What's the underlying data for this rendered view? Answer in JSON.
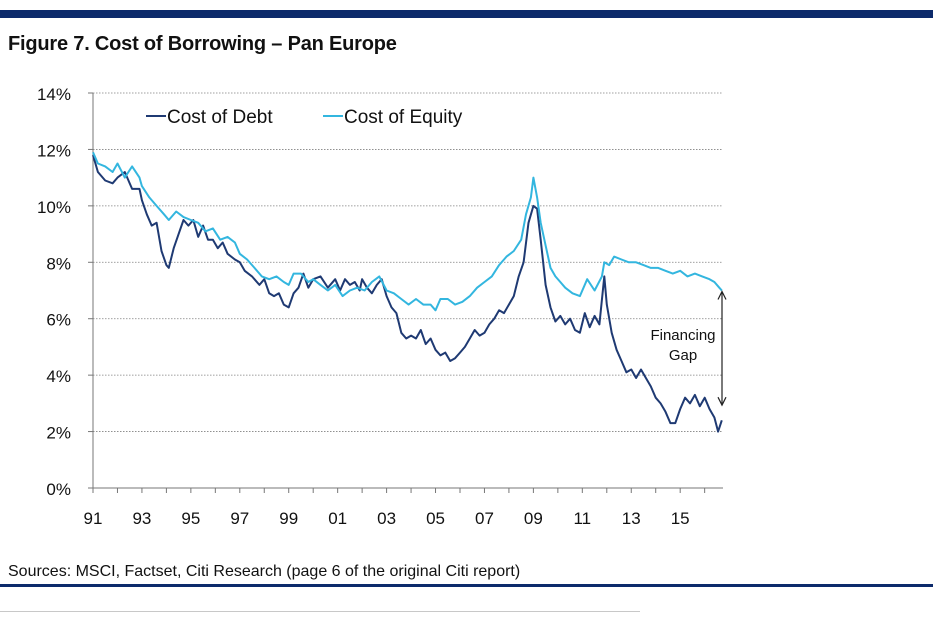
{
  "figure": {
    "title": "Figure 7. Cost of Borrowing – Pan Europe",
    "source": "Sources: MSCI, Factset, Citi Research (page 6 of the original Citi report)"
  },
  "colors": {
    "accent_rule": "#0c2a6b",
    "debt": "#1f3a73",
    "equity": "#33b6df",
    "grid": "#808080"
  },
  "chart_data": {
    "type": "line",
    "title": "Figure 7. Cost of Borrowing – Pan Europe",
    "xlabel": "",
    "ylabel": "",
    "xlim": [
      1991,
      2016.75
    ],
    "ylim": [
      0,
      14
    ],
    "grid": true,
    "legend_position": "top-left",
    "x_ticks": [
      "91",
      "93",
      "95",
      "97",
      "99",
      "01",
      "03",
      "05",
      "07",
      "09",
      "11",
      "13",
      "15"
    ],
    "y_ticks": [
      "0%",
      "2%",
      "4%",
      "6%",
      "8%",
      "10%",
      "12%",
      "14%"
    ],
    "annotation": {
      "text_line1": "Financing",
      "text_line2": "Gap"
    },
    "series": [
      {
        "name": "Cost of Debt",
        "color": "#1f3a73",
        "points": [
          [
            1991.0,
            11.8
          ],
          [
            1991.2,
            11.2
          ],
          [
            1991.5,
            10.9
          ],
          [
            1991.8,
            10.8
          ],
          [
            1992.0,
            11.0
          ],
          [
            1992.3,
            11.2
          ],
          [
            1992.6,
            10.6
          ],
          [
            1992.9,
            10.6
          ],
          [
            1993.0,
            10.2
          ],
          [
            1993.2,
            9.7
          ],
          [
            1993.4,
            9.3
          ],
          [
            1993.6,
            9.4
          ],
          [
            1993.8,
            8.4
          ],
          [
            1994.0,
            7.9
          ],
          [
            1994.1,
            7.8
          ],
          [
            1994.3,
            8.5
          ],
          [
            1994.5,
            9.0
          ],
          [
            1994.7,
            9.5
          ],
          [
            1994.9,
            9.3
          ],
          [
            1995.1,
            9.5
          ],
          [
            1995.3,
            8.9
          ],
          [
            1995.5,
            9.3
          ],
          [
            1995.7,
            8.8
          ],
          [
            1995.9,
            8.8
          ],
          [
            1996.1,
            8.5
          ],
          [
            1996.3,
            8.7
          ],
          [
            1996.5,
            8.3
          ],
          [
            1996.8,
            8.1
          ],
          [
            1997.0,
            8.0
          ],
          [
            1997.2,
            7.7
          ],
          [
            1997.5,
            7.5
          ],
          [
            1997.8,
            7.2
          ],
          [
            1998.0,
            7.4
          ],
          [
            1998.2,
            6.9
          ],
          [
            1998.4,
            6.8
          ],
          [
            1998.6,
            6.9
          ],
          [
            1998.8,
            6.5
          ],
          [
            1999.0,
            6.4
          ],
          [
            1999.2,
            6.9
          ],
          [
            1999.4,
            7.1
          ],
          [
            1999.6,
            7.6
          ],
          [
            1999.8,
            7.1
          ],
          [
            2000.0,
            7.4
          ],
          [
            2000.3,
            7.5
          ],
          [
            2000.6,
            7.1
          ],
          [
            2000.9,
            7.4
          ],
          [
            2001.1,
            7.0
          ],
          [
            2001.3,
            7.4
          ],
          [
            2001.5,
            7.2
          ],
          [
            2001.7,
            7.3
          ],
          [
            2001.9,
            7.0
          ],
          [
            2002.0,
            7.4
          ],
          [
            2002.2,
            7.1
          ],
          [
            2002.4,
            6.9
          ],
          [
            2002.6,
            7.2
          ],
          [
            2002.8,
            7.4
          ],
          [
            2003.0,
            6.8
          ],
          [
            2003.2,
            6.4
          ],
          [
            2003.4,
            6.2
          ],
          [
            2003.6,
            5.5
          ],
          [
            2003.8,
            5.3
          ],
          [
            2004.0,
            5.4
          ],
          [
            2004.2,
            5.3
          ],
          [
            2004.4,
            5.6
          ],
          [
            2004.6,
            5.1
          ],
          [
            2004.8,
            5.3
          ],
          [
            2005.0,
            4.9
          ],
          [
            2005.2,
            4.7
          ],
          [
            2005.4,
            4.8
          ],
          [
            2005.6,
            4.5
          ],
          [
            2005.8,
            4.6
          ],
          [
            2006.0,
            4.8
          ],
          [
            2006.2,
            5.0
          ],
          [
            2006.4,
            5.3
          ],
          [
            2006.6,
            5.6
          ],
          [
            2006.8,
            5.4
          ],
          [
            2007.0,
            5.5
          ],
          [
            2007.2,
            5.8
          ],
          [
            2007.4,
            6.0
          ],
          [
            2007.6,
            6.3
          ],
          [
            2007.8,
            6.2
          ],
          [
            2008.0,
            6.5
          ],
          [
            2008.2,
            6.8
          ],
          [
            2008.4,
            7.5
          ],
          [
            2008.6,
            8.0
          ],
          [
            2008.8,
            9.4
          ],
          [
            2009.0,
            10.0
          ],
          [
            2009.15,
            9.9
          ],
          [
            2009.3,
            8.8
          ],
          [
            2009.5,
            7.2
          ],
          [
            2009.7,
            6.4
          ],
          [
            2009.9,
            5.9
          ],
          [
            2010.1,
            6.1
          ],
          [
            2010.3,
            5.8
          ],
          [
            2010.5,
            6.0
          ],
          [
            2010.7,
            5.6
          ],
          [
            2010.9,
            5.5
          ],
          [
            2011.1,
            6.2
          ],
          [
            2011.3,
            5.7
          ],
          [
            2011.5,
            6.1
          ],
          [
            2011.7,
            5.8
          ],
          [
            2011.9,
            7.5
          ],
          [
            2012.0,
            6.5
          ],
          [
            2012.2,
            5.5
          ],
          [
            2012.4,
            4.9
          ],
          [
            2012.6,
            4.5
          ],
          [
            2012.8,
            4.1
          ],
          [
            2013.0,
            4.2
          ],
          [
            2013.2,
            3.9
          ],
          [
            2013.4,
            4.2
          ],
          [
            2013.6,
            3.9
          ],
          [
            2013.8,
            3.6
          ],
          [
            2014.0,
            3.2
          ],
          [
            2014.2,
            3.0
          ],
          [
            2014.4,
            2.7
          ],
          [
            2014.6,
            2.3
          ],
          [
            2014.8,
            2.3
          ],
          [
            2015.0,
            2.8
          ],
          [
            2015.2,
            3.2
          ],
          [
            2015.4,
            3.0
          ],
          [
            2015.6,
            3.3
          ],
          [
            2015.8,
            2.9
          ],
          [
            2016.0,
            3.2
          ],
          [
            2016.2,
            2.8
          ],
          [
            2016.4,
            2.5
          ],
          [
            2016.55,
            2.0
          ],
          [
            2016.7,
            2.4
          ]
        ]
      },
      {
        "name": "Cost of Equity",
        "color": "#33b6df",
        "points": [
          [
            1991.0,
            11.9
          ],
          [
            1991.2,
            11.5
          ],
          [
            1991.5,
            11.4
          ],
          [
            1991.8,
            11.2
          ],
          [
            1992.0,
            11.5
          ],
          [
            1992.3,
            11.0
          ],
          [
            1992.6,
            11.4
          ],
          [
            1992.9,
            11.0
          ],
          [
            1993.0,
            10.7
          ],
          [
            1993.3,
            10.3
          ],
          [
            1993.6,
            10.0
          ],
          [
            1993.9,
            9.7
          ],
          [
            1994.1,
            9.5
          ],
          [
            1994.4,
            9.8
          ],
          [
            1994.7,
            9.6
          ],
          [
            1995.0,
            9.5
          ],
          [
            1995.3,
            9.4
          ],
          [
            1995.6,
            9.1
          ],
          [
            1995.9,
            9.2
          ],
          [
            1996.2,
            8.8
          ],
          [
            1996.5,
            8.9
          ],
          [
            1996.8,
            8.7
          ],
          [
            1997.0,
            8.3
          ],
          [
            1997.3,
            8.1
          ],
          [
            1997.6,
            7.8
          ],
          [
            1997.9,
            7.5
          ],
          [
            1998.2,
            7.4
          ],
          [
            1998.5,
            7.5
          ],
          [
            1998.8,
            7.3
          ],
          [
            1999.0,
            7.2
          ],
          [
            1999.2,
            7.6
          ],
          [
            1999.5,
            7.6
          ],
          [
            1999.8,
            7.3
          ],
          [
            2000.0,
            7.4
          ],
          [
            2000.3,
            7.2
          ],
          [
            2000.6,
            7.0
          ],
          [
            2000.9,
            7.2
          ],
          [
            2001.2,
            6.8
          ],
          [
            2001.5,
            7.0
          ],
          [
            2001.8,
            7.1
          ],
          [
            2002.1,
            7.0
          ],
          [
            2002.4,
            7.3
          ],
          [
            2002.7,
            7.5
          ],
          [
            2003.0,
            7.0
          ],
          [
            2003.3,
            6.9
          ],
          [
            2003.6,
            6.7
          ],
          [
            2003.9,
            6.5
          ],
          [
            2004.2,
            6.7
          ],
          [
            2004.5,
            6.5
          ],
          [
            2004.8,
            6.5
          ],
          [
            2005.0,
            6.3
          ],
          [
            2005.2,
            6.7
          ],
          [
            2005.5,
            6.7
          ],
          [
            2005.8,
            6.5
          ],
          [
            2006.1,
            6.6
          ],
          [
            2006.4,
            6.8
          ],
          [
            2006.7,
            7.1
          ],
          [
            2007.0,
            7.3
          ],
          [
            2007.3,
            7.5
          ],
          [
            2007.6,
            7.9
          ],
          [
            2007.9,
            8.2
          ],
          [
            2008.2,
            8.4
          ],
          [
            2008.5,
            8.8
          ],
          [
            2008.7,
            9.7
          ],
          [
            2008.9,
            10.3
          ],
          [
            2009.0,
            11.0
          ],
          [
            2009.15,
            10.3
          ],
          [
            2009.3,
            9.4
          ],
          [
            2009.5,
            8.6
          ],
          [
            2009.7,
            7.8
          ],
          [
            2009.9,
            7.5
          ],
          [
            2010.1,
            7.3
          ],
          [
            2010.3,
            7.1
          ],
          [
            2010.6,
            6.9
          ],
          [
            2010.9,
            6.8
          ],
          [
            2011.2,
            7.4
          ],
          [
            2011.5,
            7.0
          ],
          [
            2011.8,
            7.5
          ],
          [
            2011.9,
            8.0
          ],
          [
            2012.1,
            7.9
          ],
          [
            2012.3,
            8.2
          ],
          [
            2012.6,
            8.1
          ],
          [
            2012.9,
            8.0
          ],
          [
            2013.2,
            8.0
          ],
          [
            2013.5,
            7.9
          ],
          [
            2013.8,
            7.8
          ],
          [
            2014.1,
            7.8
          ],
          [
            2014.4,
            7.7
          ],
          [
            2014.7,
            7.6
          ],
          [
            2015.0,
            7.7
          ],
          [
            2015.3,
            7.5
          ],
          [
            2015.6,
            7.6
          ],
          [
            2015.9,
            7.5
          ],
          [
            2016.2,
            7.4
          ],
          [
            2016.4,
            7.3
          ],
          [
            2016.6,
            7.1
          ],
          [
            2016.7,
            7.0
          ]
        ]
      }
    ]
  }
}
